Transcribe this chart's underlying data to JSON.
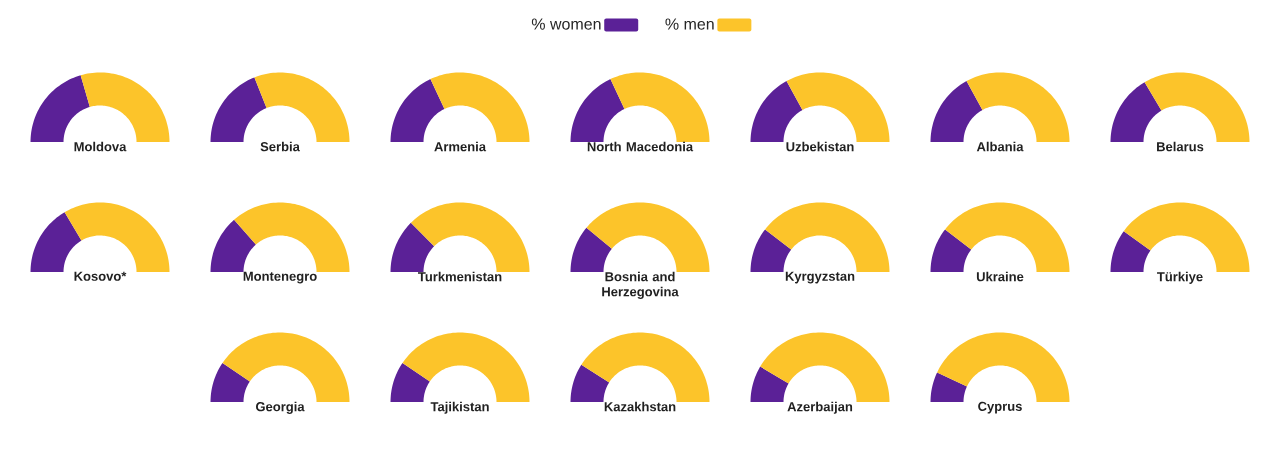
{
  "chart_data": [
    {
      "type": "donut",
      "title": "Moldova",
      "categories": [
        null,
        null
      ],
      "values": [
        41,
        59
      ],
      "colors": [
        "#5b2197",
        "#fcc42a"
      ]
    },
    {
      "type": "donut",
      "title": "Serbia",
      "categories": [
        null,
        null
      ],
      "values": [
        38,
        62
      ],
      "colors": [
        "#5b2197",
        "#fcc42a"
      ]
    },
    {
      "type": "donut",
      "title": "Armenia",
      "categories": [
        null,
        null
      ],
      "values": [
        36,
        64
      ],
      "colors": [
        "#5b2197",
        "#fcc42a"
      ]
    },
    {
      "type": "donut",
      "title": "North Macedonia",
      "categories": [
        "% women",
        "% men"
      ],
      "values": [
        36,
        64
      ],
      "colors": [
        "#5b2197",
        "#fcc42a"
      ],
      "legend": "top"
    },
    {
      "type": "donut",
      "title": "Uzbekistan",
      "categories": [
        null,
        null
      ],
      "values": [
        34,
        66
      ],
      "colors": [
        "#5b2197",
        "#fcc42a"
      ]
    },
    {
      "type": "donut",
      "title": "Albania",
      "categories": [
        null,
        null
      ],
      "values": [
        34,
        66
      ],
      "colors": [
        "#5b2197",
        "#fcc42a"
      ]
    },
    {
      "type": "donut",
      "title": "Belarus",
      "categories": [
        null,
        null
      ],
      "values": [
        33,
        67
      ],
      "colors": [
        "#5b2197",
        "#fcc42a"
      ]
    },
    {
      "type": "donut",
      "title": "Kosovo*",
      "categories": [
        null,
        null
      ],
      "values": [
        33,
        67
      ],
      "colors": [
        "#5b2197",
        "#fcc42a"
      ]
    },
    {
      "type": "donut",
      "title": "Montenegro",
      "categories": [
        null,
        null
      ],
      "values": [
        27,
        73
      ],
      "colors": [
        "#5b2197",
        "#fcc42a"
      ]
    },
    {
      "type": "donut",
      "title": "Turkmenistan",
      "categories": [
        null,
        null
      ],
      "values": [
        25,
        75
      ],
      "colors": [
        "#5b2197",
        "#fcc42a"
      ]
    },
    {
      "type": "donut",
      "title": "Bosnia and Herzegovina",
      "categories": [
        null,
        null
      ],
      "values": [
        22,
        78
      ],
      "colors": [
        "#5b2197",
        "#fcc42a"
      ]
    },
    {
      "type": "donut",
      "title": "Kyrgyzstan",
      "categories": [
        null,
        null
      ],
      "values": [
        21,
        79
      ],
      "colors": [
        "#5b2197",
        "#fcc42a"
      ]
    },
    {
      "type": "donut",
      "title": "Ukraine",
      "categories": [
        null,
        null
      ],
      "values": [
        21,
        79
      ],
      "colors": [
        "#5b2197",
        "#fcc42a"
      ]
    },
    {
      "type": "donut",
      "title": "Türkiye",
      "categories": [
        null,
        null
      ],
      "values": [
        20,
        80
      ],
      "colors": [
        "#5b2197",
        "#fcc42a"
      ]
    },
    {
      "type": "donut",
      "title": "Georgia",
      "categories": [
        null,
        null
      ],
      "values": [
        19,
        81
      ],
      "colors": [
        "#5b2197",
        "#fcc42a"
      ]
    },
    {
      "type": "donut",
      "title": "Tajikistan",
      "categories": [
        null,
        null
      ],
      "values": [
        19,
        81
      ],
      "colors": [
        "#5b2197",
        "#fcc42a"
      ]
    },
    {
      "type": "donut",
      "title": "Kazakhstan",
      "categories": [
        null,
        null
      ],
      "values": [
        18,
        82
      ],
      "colors": [
        "#5b2197",
        "#fcc42a"
      ]
    },
    {
      "type": "donut",
      "title": "Azerbaijan",
      "categories": [
        null,
        null
      ],
      "values": [
        17,
        83
      ],
      "colors": [
        "#5b2197",
        "#fcc42a"
      ]
    },
    {
      "type": "donut",
      "title": "Cyprus",
      "categories": [
        null,
        null
      ],
      "values": [
        14,
        86
      ],
      "colors": [
        "#5b2197",
        "#fcc42a"
      ]
    }
  ]
}
